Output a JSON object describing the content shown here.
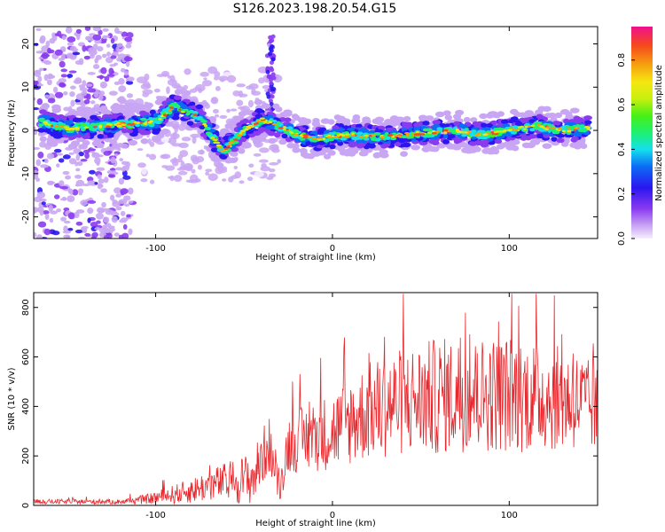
{
  "title": "S126.2023.198.20.54.G15",
  "chart_data": [
    {
      "type": "heatmap",
      "xlabel": "Height of straight line (km)",
      "ylabel": "Frequency (Hz)",
      "xlim": [
        -169,
        150
      ],
      "ylim": [
        -25,
        24
      ],
      "xticks": [
        -100,
        0,
        100
      ],
      "yticks": [
        -20,
        -10,
        0,
        10,
        20
      ],
      "colorbar": {
        "label": "Normalized spectral amplitude",
        "range": [
          0,
          0.95
        ],
        "ticks": [
          0.0,
          0.2,
          0.4,
          0.6,
          0.8
        ],
        "colormap": [
          "#f6eefe",
          "#c9a6f3",
          "#8a3bf0",
          "#2a16f0",
          "#0d6cf5",
          "#14e0ee",
          "#1ef070",
          "#47f016",
          "#c8f010",
          "#f6e60f",
          "#f6a010",
          "#f54a1b",
          "#f0108c"
        ]
      },
      "noise_region_x": [
        -169,
        -113
      ],
      "trace": [
        {
          "x": -165,
          "f": 2
        },
        {
          "x": -150,
          "f": 0.5
        },
        {
          "x": -130,
          "f": 1
        },
        {
          "x": -115,
          "f": 1.5
        },
        {
          "x": -100,
          "f": 2
        },
        {
          "x": -90,
          "f": 5.5
        },
        {
          "x": -75,
          "f": 3
        },
        {
          "x": -62,
          "f": -5
        },
        {
          "x": -50,
          "f": 0
        },
        {
          "x": -40,
          "f": 2.5
        },
        {
          "x": -30,
          "f": 1
        },
        {
          "x": -20,
          "f": -1
        },
        {
          "x": -10,
          "f": -2
        },
        {
          "x": 0,
          "f": -1.5
        },
        {
          "x": 10,
          "f": -1
        },
        {
          "x": 25,
          "f": -1.5
        },
        {
          "x": 40,
          "f": -1
        },
        {
          "x": 55,
          "f": -0.5
        },
        {
          "x": 70,
          "f": 0
        },
        {
          "x": 85,
          "f": -1
        },
        {
          "x": 100,
          "f": 0
        },
        {
          "x": 115,
          "f": 1
        },
        {
          "x": 130,
          "f": 0
        },
        {
          "x": 145,
          "f": 0.5
        }
      ]
    },
    {
      "type": "line",
      "xlabel": "Height of straight line (km)",
      "ylabel": "SNR (10 * v/v)",
      "xlim": [
        -169,
        150
      ],
      "ylim": [
        0,
        860
      ],
      "xticks": [
        -100,
        0,
        100
      ],
      "yticks": [
        0,
        200,
        400,
        600,
        800
      ],
      "line_color": "#e8262b",
      "envelope": [
        {
          "x": -169,
          "mean": 15,
          "spread": 10
        },
        {
          "x": -120,
          "mean": 15,
          "spread": 10
        },
        {
          "x": -105,
          "mean": 25,
          "spread": 20
        },
        {
          "x": -85,
          "mean": 50,
          "spread": 45
        },
        {
          "x": -65,
          "mean": 90,
          "spread": 70
        },
        {
          "x": -45,
          "mean": 110,
          "spread": 110
        },
        {
          "x": -36,
          "mean": 250,
          "spread": 120
        },
        {
          "x": -30,
          "mean": 60,
          "spread": 50
        },
        {
          "x": -25,
          "mean": 250,
          "spread": 120
        },
        {
          "x": 0,
          "mean": 300,
          "spread": 160
        },
        {
          "x": 20,
          "mean": 380,
          "spread": 200
        },
        {
          "x": 40,
          "mean": 420,
          "spread": 220
        },
        {
          "x": 60,
          "mean": 440,
          "spread": 240
        },
        {
          "x": 80,
          "mean": 450,
          "spread": 230
        },
        {
          "x": 100,
          "mean": 450,
          "spread": 240
        },
        {
          "x": 120,
          "mean": 440,
          "spread": 220
        },
        {
          "x": 140,
          "mean": 420,
          "spread": 200
        },
        {
          "x": 150,
          "mean": 380,
          "spread": 180
        }
      ]
    }
  ]
}
